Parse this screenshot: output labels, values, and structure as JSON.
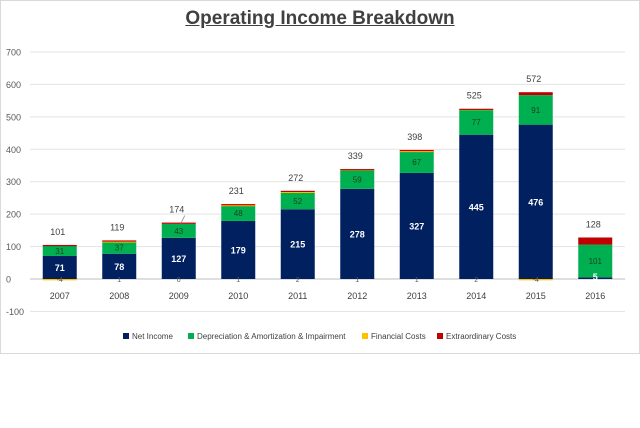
{
  "chart_data": {
    "type": "bar",
    "stacked": true,
    "title": "Operating Income Breakdown",
    "xlabel": "",
    "ylabel": "",
    "ylim": [
      -100,
      700
    ],
    "yticks": [
      -100,
      0,
      100,
      200,
      300,
      400,
      500,
      600,
      700
    ],
    "grid": true,
    "legend_position": "bottom",
    "categories": [
      "2007",
      "2008",
      "2009",
      "2010",
      "2011",
      "2012",
      "2013",
      "2014",
      "2015",
      "2016"
    ],
    "series": [
      {
        "name": "Net Income",
        "color": "#002060",
        "values": [
          71,
          78,
          127,
          179,
          215,
          278,
          327,
          445,
          476,
          5
        ]
      },
      {
        "name": "Depreciation & Amortization & Impairment",
        "color": "#00b050",
        "values": [
          31,
          37,
          43,
          48,
          52,
          59,
          67,
          77,
          91,
          101
        ]
      },
      {
        "name": "Financial Costs",
        "color": "#ffc000",
        "values": [
          -4,
          1,
          0,
          1,
          2,
          1,
          1,
          2,
          -4,
          0
        ]
      },
      {
        "name": "Extraordinary Costs",
        "color": "#c00000",
        "values": [
          3,
          3,
          4,
          3,
          3,
          1,
          3,
          1,
          9,
          22
        ]
      }
    ],
    "segment_labels": {
      "Net Income": [
        "71",
        "78",
        "127",
        "179",
        "215",
        "278",
        "327",
        "445",
        "476",
        "5"
      ],
      "Depreciation & Amortization & Impairment": [
        "31",
        "37",
        "43",
        "48",
        "52",
        "59",
        "67",
        "77",
        "91",
        "101"
      ],
      "Financial Costs": [
        "-4",
        "1",
        "0",
        "1",
        "2",
        "1",
        "1",
        "2",
        "-4",
        ""
      ]
    },
    "totals": [
      101,
      119,
      174,
      231,
      272,
      339,
      398,
      525,
      572,
      128
    ]
  }
}
